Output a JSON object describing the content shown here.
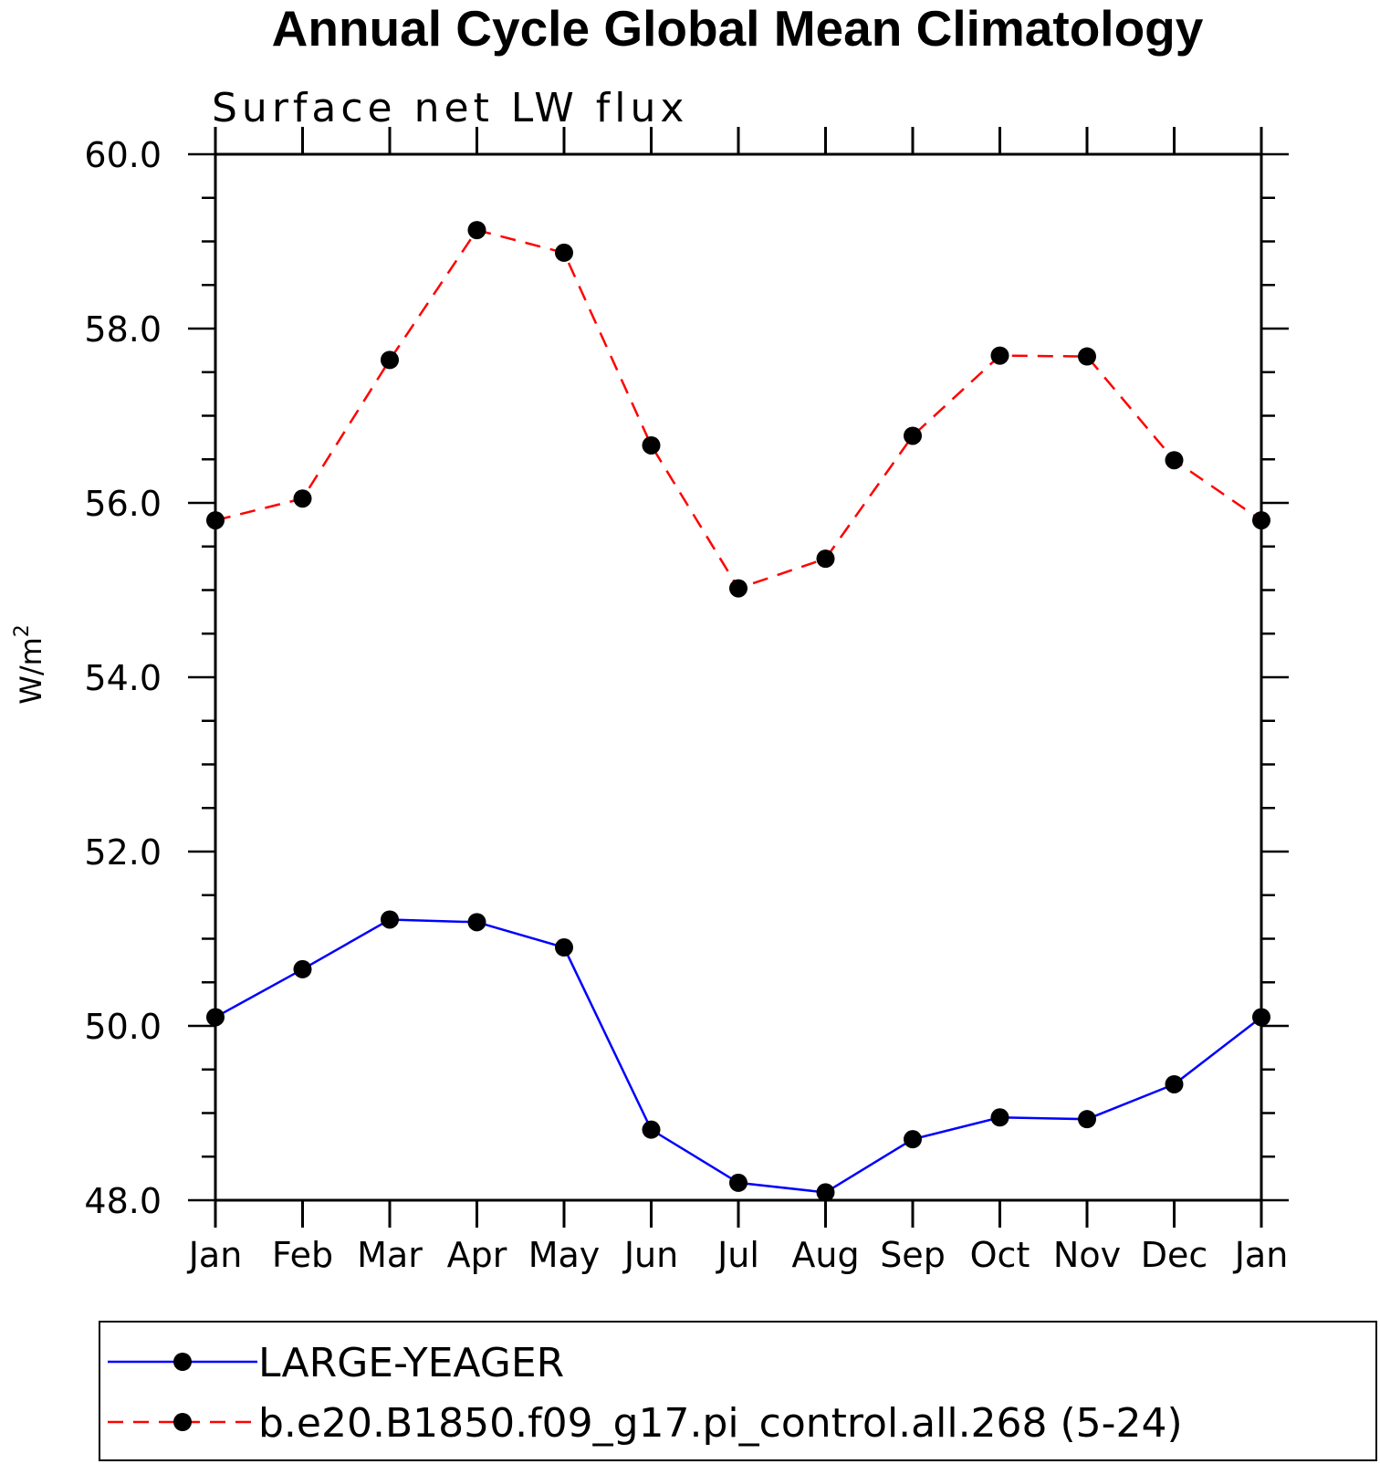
{
  "chart_data": {
    "type": "line",
    "title": "Annual Cycle Global Mean Climatology",
    "subtitle": "Surface net LW flux",
    "ylabel": "W/m",
    "ylabel_superscript": "2",
    "xlabel": "",
    "categories": [
      "Jan",
      "Feb",
      "Mar",
      "Apr",
      "May",
      "Jun",
      "Jul",
      "Aug",
      "Sep",
      "Oct",
      "Nov",
      "Dec",
      "Jan"
    ],
    "ylim": [
      48.0,
      60.0
    ],
    "yticks": [
      "48.0",
      "50.0",
      "52.0",
      "54.0",
      "56.0",
      "58.0",
      "60.0"
    ],
    "series": [
      {
        "name": "LARGE-YEAGER",
        "color": "#0000ff",
        "dash": "solid",
        "marker": "filled-circle",
        "values": [
          50.1,
          50.65,
          51.22,
          51.19,
          50.9,
          48.81,
          48.2,
          48.09,
          48.7,
          48.95,
          48.93,
          49.33,
          50.1
        ]
      },
      {
        "name": "b.e20.B1850.f09_g17.pi_control.all.268 (5-24)",
        "color": "#ff0000",
        "dash": "dashed",
        "marker": "filled-circle",
        "values": [
          55.8,
          56.05,
          57.64,
          59.13,
          58.87,
          56.66,
          55.02,
          55.36,
          56.77,
          57.69,
          57.68,
          56.49,
          55.8
        ]
      }
    ],
    "legend": "bottom"
  }
}
